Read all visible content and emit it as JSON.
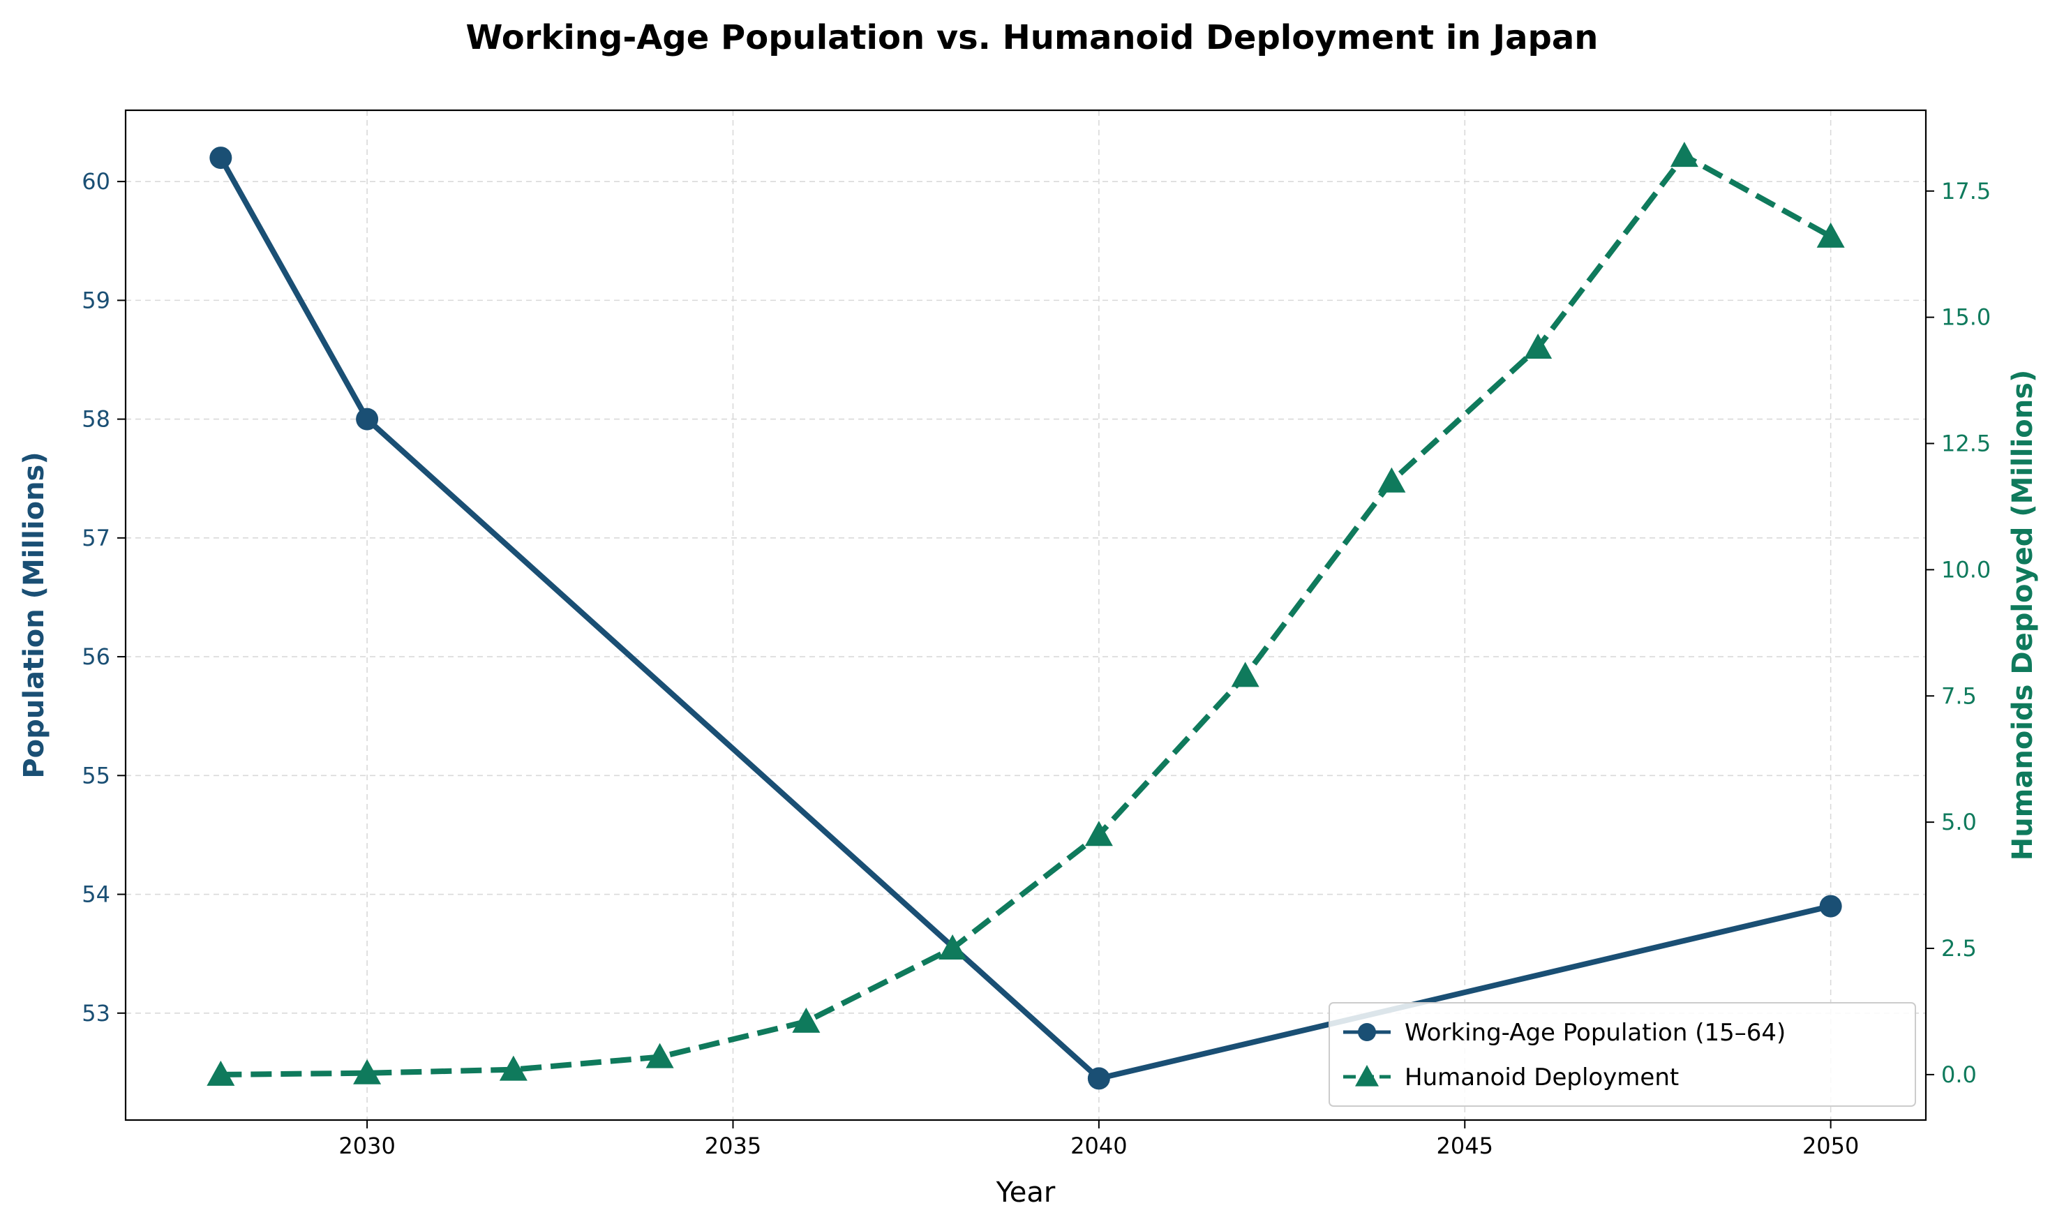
{
  "chart_data": {
    "type": "line",
    "title": "Working-Age Population vs. Humanoid Deployment in Japan",
    "xlabel": "Year",
    "ylabel_left": "Population (Millions)",
    "ylabel_right": "Humanoids Deployed (Millions)",
    "xlim": [
      2026.7,
      2051.3
    ],
    "ylim_left": [
      52.1,
      60.6
    ],
    "ylim_right": [
      -0.9,
      19.1
    ],
    "x_ticks": [
      2030,
      2035,
      2040,
      2045,
      2050
    ],
    "y_left_ticks": [
      53,
      54,
      55,
      56,
      57,
      58,
      59,
      60
    ],
    "y_right_ticks": [
      "0.0",
      "2.5",
      "5.0",
      "7.5",
      "10.0",
      "12.5",
      "15.0",
      "17.5"
    ],
    "grid": true,
    "legend_position": "lower-right",
    "series": [
      {
        "name": "Working-Age Population (15–64)",
        "axis": "left",
        "color": "#1a4f74",
        "style": "solid",
        "marker": "circle",
        "x": [
          2028,
          2030,
          2040,
          2050
        ],
        "y": [
          60.2,
          58.0,
          52.45,
          53.9
        ]
      },
      {
        "name": "Humanoid Deployment",
        "axis": "right",
        "color": "#0f7a5c",
        "style": "dashed",
        "marker": "triangle",
        "x": [
          2028,
          2030,
          2032,
          2034,
          2036,
          2038,
          2040,
          2042,
          2044,
          2046,
          2048,
          2050
        ],
        "y": [
          0.0,
          0.03,
          0.1,
          0.35,
          1.05,
          2.5,
          4.75,
          7.9,
          11.75,
          14.4,
          18.2,
          16.6
        ]
      }
    ]
  }
}
